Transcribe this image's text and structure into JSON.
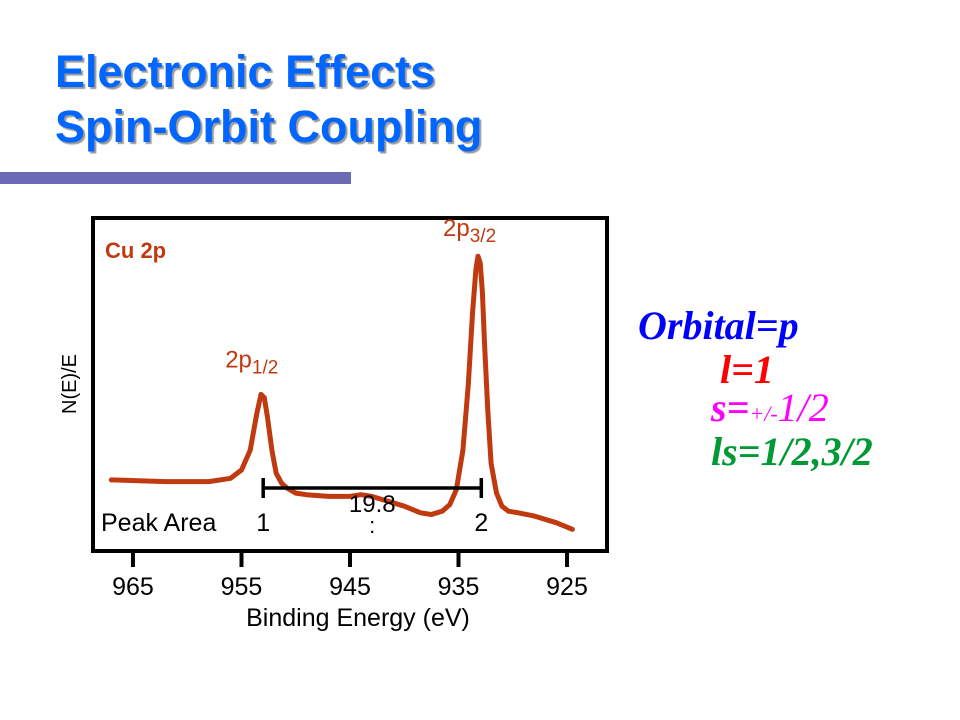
{
  "title": {
    "line1": "Electronic Effects",
    "line2": "Spin-Orbit Coupling"
  },
  "chart_data": {
    "type": "line",
    "title": "Cu 2p",
    "xlabel": "Binding Energy (eV)",
    "ylabel": "N(E)/E",
    "xlim": [
      968.5,
      921.5
    ],
    "ylim": [
      0,
      1
    ],
    "x_reversed": true,
    "x_ticks": [
      965,
      955,
      945,
      935,
      925
    ],
    "x_tick_labels": [
      "965",
      "955",
      "945",
      "935",
      "925"
    ],
    "grid": false,
    "series_color": "#c03a10",
    "series": [
      {
        "x": [
          967,
          962,
          958,
          956,
          955,
          954.2,
          953.6,
          953.2,
          952.9,
          952.6,
          952.2,
          951.8,
          951.3,
          950.8,
          950,
          949,
          947,
          945,
          944,
          943,
          942,
          940,
          938.5,
          937.5,
          936.5,
          935.8,
          935.2,
          934.6,
          934.1,
          933.7,
          933.4,
          933.2,
          933,
          932.8,
          932.6,
          932.3,
          932,
          931.5,
          931,
          930.4,
          929.5,
          928,
          926,
          924.5
        ],
        "y": [
          0.21,
          0.205,
          0.205,
          0.215,
          0.24,
          0.3,
          0.41,
          0.47,
          0.46,
          0.4,
          0.3,
          0.23,
          0.2,
          0.185,
          0.17,
          0.165,
          0.16,
          0.16,
          0.165,
          0.16,
          0.15,
          0.13,
          0.11,
          0.105,
          0.115,
          0.135,
          0.18,
          0.3,
          0.5,
          0.72,
          0.85,
          0.89,
          0.87,
          0.78,
          0.62,
          0.42,
          0.26,
          0.17,
          0.13,
          0.115,
          0.11,
          0.1,
          0.08,
          0.06
        ]
      }
    ],
    "peak_labels": [
      {
        "base": "2p",
        "sub": "1/2",
        "x": 953,
        "y": 0.47
      },
      {
        "base": "2p",
        "sub": "3/2",
        "x": 933.2,
        "y": 0.89
      }
    ],
    "peak_area": {
      "label": "Peak Area",
      "ratio": [
        "1",
        ":",
        "2"
      ],
      "separation": "19.8",
      "bracket_x": [
        953,
        932.9
      ]
    }
  },
  "formulas": {
    "orbital": "Orbital=p",
    "l": "l=1",
    "s_prefix": "s=",
    "s_pm": "+/-",
    "s_val": "1/2",
    "ls": "ls=1/2,3/2"
  }
}
